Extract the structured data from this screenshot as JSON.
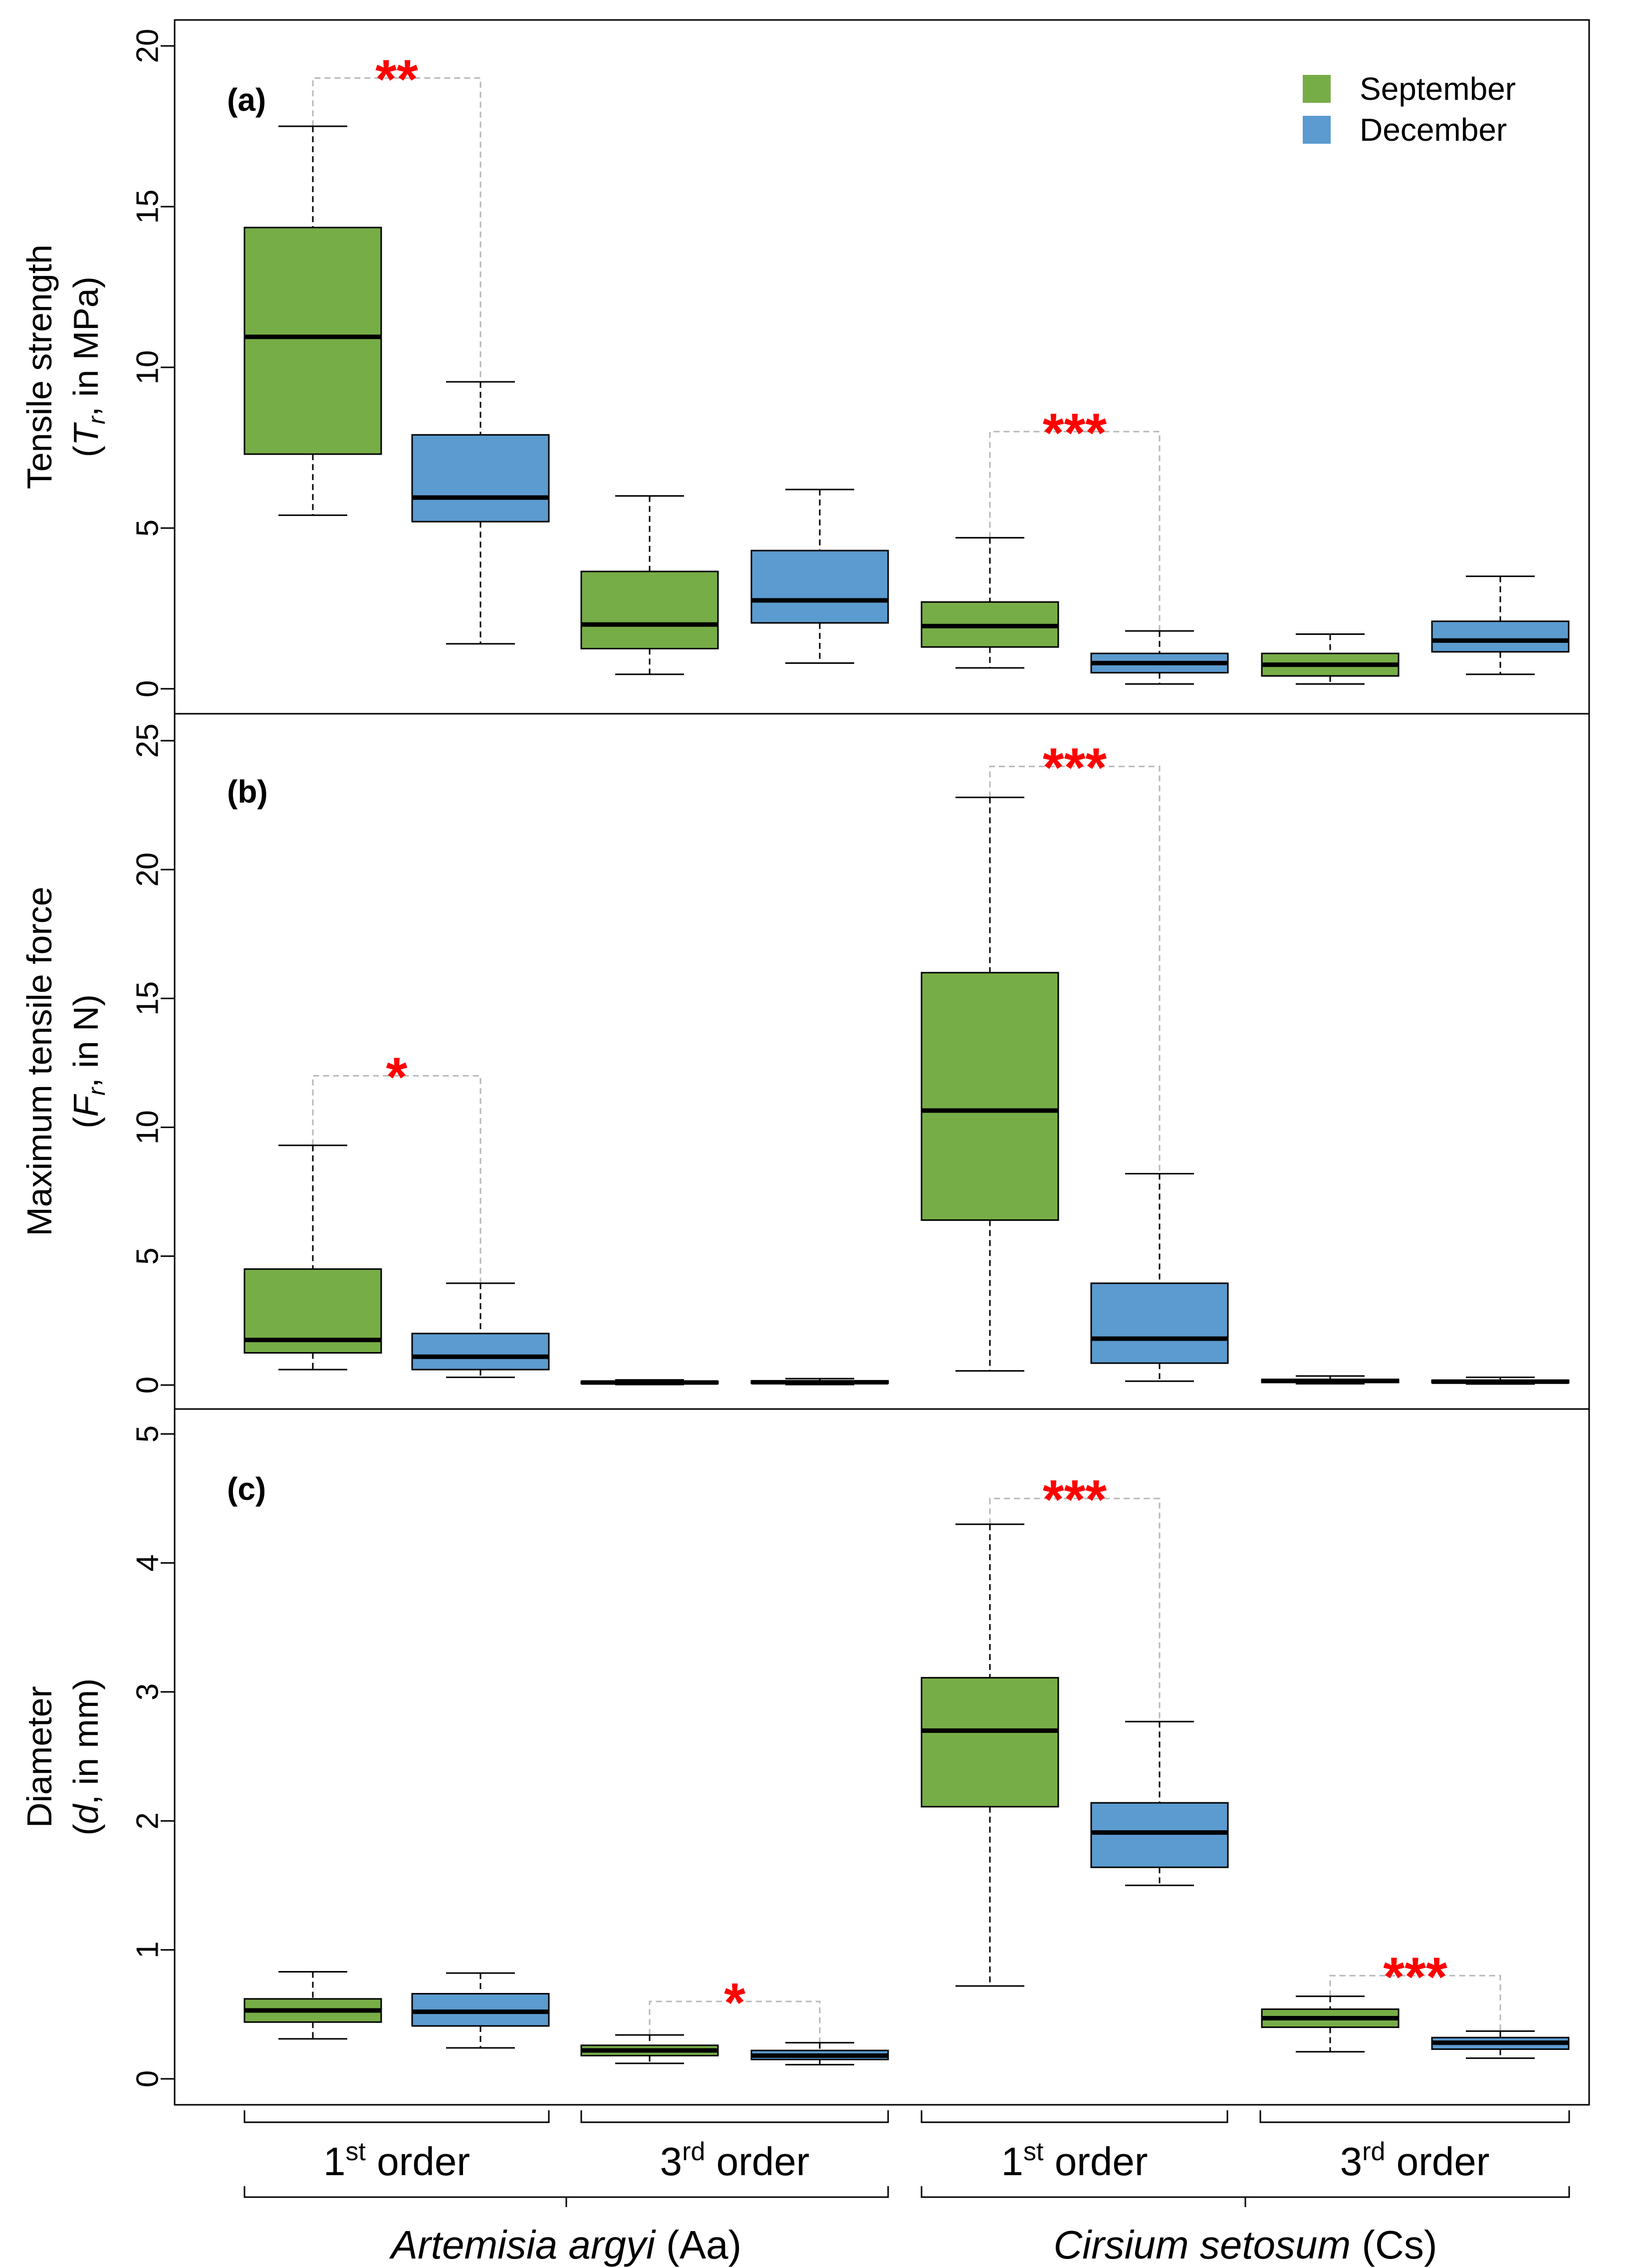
{
  "chart_data": [
    {
      "panel": "(a)",
      "type": "box",
      "ylabel": "Tensile strength",
      "ylabel_sub": [
        "(",
        "T",
        "r",
        ", in MPa)"
      ],
      "ylim": [
        0,
        20
      ],
      "yticks": [
        "0",
        "5",
        "10",
        "15",
        "20"
      ],
      "legend": {
        "position": "top-right",
        "entries": [
          {
            "name": "September",
            "color": "#77ad47"
          },
          {
            "name": "December",
            "color": "#5b9bcf"
          }
        ]
      },
      "boxes": [
        {
          "group": "Aa 1st order",
          "series": "September",
          "min": 5.4,
          "q1": 7.3,
          "median": 10.95,
          "q3": 14.35,
          "max": 17.5
        },
        {
          "group": "Aa 1st order",
          "series": "December",
          "min": 1.4,
          "q1": 5.2,
          "median": 5.95,
          "q3": 7.9,
          "max": 9.55
        },
        {
          "group": "Aa 3rd order",
          "series": "September",
          "min": 0.45,
          "q1": 1.25,
          "median": 2.0,
          "q3": 3.65,
          "max": 6.0
        },
        {
          "group": "Aa 3rd order",
          "series": "December",
          "min": 0.8,
          "q1": 2.05,
          "median": 2.75,
          "q3": 4.3,
          "max": 6.2
        },
        {
          "group": "Cs 1st order",
          "series": "September",
          "min": 0.65,
          "q1": 1.3,
          "median": 1.95,
          "q3": 2.7,
          "max": 4.7
        },
        {
          "group": "Cs 1st order",
          "series": "December",
          "min": 0.15,
          "q1": 0.5,
          "median": 0.8,
          "q3": 1.1,
          "max": 1.8
        },
        {
          "group": "Cs 3rd order",
          "series": "September",
          "min": 0.15,
          "q1": 0.4,
          "median": 0.75,
          "q3": 1.1,
          "max": 1.7
        },
        {
          "group": "Cs 3rd order",
          "series": "December",
          "min": 0.45,
          "q1": 1.15,
          "median": 1.5,
          "q3": 2.1,
          "max": 3.5
        }
      ],
      "significance": [
        {
          "group": "Aa 1st order",
          "label": "**",
          "y": 19.0
        },
        {
          "group": "Cs 1st order",
          "label": "***",
          "y": 8.0
        }
      ]
    },
    {
      "panel": "(b)",
      "type": "box",
      "ylabel": "Maximum tensile force",
      "ylabel_sub": [
        "(",
        "F",
        "r",
        ", in N)"
      ],
      "ylim": [
        0,
        25
      ],
      "yticks": [
        "0",
        "5",
        "10",
        "15",
        "20",
        "25"
      ],
      "boxes": [
        {
          "group": "Aa 1st order",
          "series": "September",
          "min": 0.6,
          "q1": 1.25,
          "median": 1.75,
          "q3": 4.5,
          "max": 9.3
        },
        {
          "group": "Aa 1st order",
          "series": "December",
          "min": 0.3,
          "q1": 0.6,
          "median": 1.1,
          "q3": 2.0,
          "max": 3.95
        },
        {
          "group": "Aa 3rd order",
          "series": "September",
          "min": 0.02,
          "q1": 0.06,
          "median": 0.1,
          "q3": 0.14,
          "max": 0.2
        },
        {
          "group": "Aa 3rd order",
          "series": "December",
          "min": 0.02,
          "q1": 0.07,
          "median": 0.11,
          "q3": 0.16,
          "max": 0.25
        },
        {
          "group": "Cs 1st order",
          "series": "September",
          "min": 0.55,
          "q1": 6.4,
          "median": 10.65,
          "q3": 16.0,
          "max": 22.8
        },
        {
          "group": "Cs 1st order",
          "series": "December",
          "min": 0.15,
          "q1": 0.85,
          "median": 1.8,
          "q3": 3.95,
          "max": 8.2
        },
        {
          "group": "Cs 3rd order",
          "series": "September",
          "min": 0.05,
          "q1": 0.1,
          "median": 0.16,
          "q3": 0.22,
          "max": 0.35
        },
        {
          "group": "Cs 3rd order",
          "series": "December",
          "min": 0.04,
          "q1": 0.09,
          "median": 0.13,
          "q3": 0.19,
          "max": 0.3
        }
      ],
      "significance": [
        {
          "group": "Aa 1st order",
          "label": "*",
          "y": 12.0
        },
        {
          "group": "Cs 1st order",
          "label": "***",
          "y": 24.0
        }
      ]
    },
    {
      "panel": "(c)",
      "type": "box",
      "ylabel": "Diameter",
      "ylabel_sub": [
        "(",
        "d",
        "",
        ", in mm)"
      ],
      "ylim": [
        0,
        5
      ],
      "yticks": [
        "0",
        "1",
        "2",
        "3",
        "4",
        "5"
      ],
      "boxes": [
        {
          "group": "Aa 1st order",
          "series": "September",
          "min": 0.31,
          "q1": 0.44,
          "median": 0.53,
          "q3": 0.62,
          "max": 0.83
        },
        {
          "group": "Aa 1st order",
          "series": "December",
          "min": 0.24,
          "q1": 0.41,
          "median": 0.52,
          "q3": 0.66,
          "max": 0.82
        },
        {
          "group": "Aa 3rd order",
          "series": "September",
          "min": 0.12,
          "q1": 0.18,
          "median": 0.22,
          "q3": 0.26,
          "max": 0.34
        },
        {
          "group": "Aa 3rd order",
          "series": "December",
          "min": 0.11,
          "q1": 0.15,
          "median": 0.18,
          "q3": 0.22,
          "max": 0.28
        },
        {
          "group": "Cs 1st order",
          "series": "September",
          "min": 0.72,
          "q1": 2.11,
          "median": 2.7,
          "q3": 3.11,
          "max": 4.3
        },
        {
          "group": "Cs 1st order",
          "series": "December",
          "min": 1.5,
          "q1": 1.64,
          "median": 1.91,
          "q3": 2.14,
          "max": 2.77
        },
        {
          "group": "Cs 3rd order",
          "series": "September",
          "min": 0.21,
          "q1": 0.4,
          "median": 0.47,
          "q3": 0.54,
          "max": 0.64
        },
        {
          "group": "Cs 3rd order",
          "series": "December",
          "min": 0.16,
          "q1": 0.23,
          "median": 0.28,
          "q3": 0.32,
          "max": 0.37
        }
      ],
      "significance": [
        {
          "group": "Aa 3rd order",
          "label": "*",
          "y": 0.6
        },
        {
          "group": "Cs 1st order",
          "label": "***",
          "y": 4.5
        },
        {
          "group": "Cs 3rd order",
          "label": "***",
          "y": 0.8
        }
      ]
    }
  ],
  "x_axis": {
    "order_labels": [
      {
        "base": "1",
        "sup": "st",
        "rest": " order"
      },
      {
        "base": "3",
        "sup": "rd",
        "rest": " order"
      },
      {
        "base": "1",
        "sup": "st",
        "rest": " order"
      },
      {
        "base": "3",
        "sup": "rd",
        "rest": " order"
      }
    ],
    "species": [
      {
        "name": "Artemisia argyi",
        "abbr": " (Aa)"
      },
      {
        "name": "Cirsium setosum",
        "abbr": " (Cs)"
      }
    ]
  }
}
